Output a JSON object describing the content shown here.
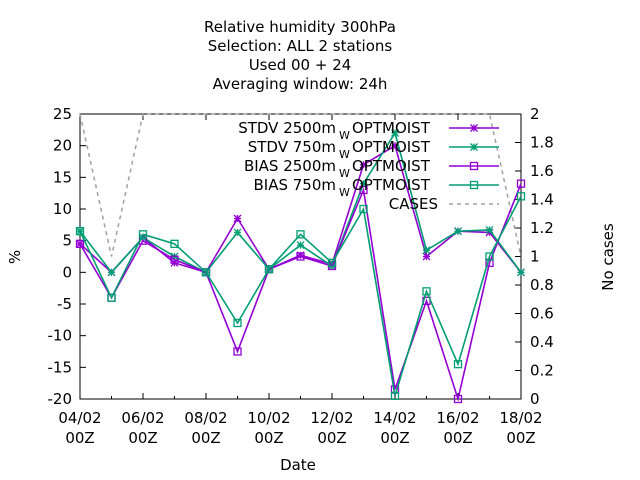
{
  "chart_data": {
    "type": "line",
    "title_lines": [
      "Relative humidity 300hPa",
      "Selection: ALL      2 stations",
      "Used  00 + 24",
      "Averaging window: 24h"
    ],
    "xlabel": "Date",
    "ylabel": "%",
    "y2label": "No cases",
    "ylim": [
      -20,
      25
    ],
    "y2lim": [
      0,
      2
    ],
    "yticks": [
      -20,
      -15,
      -10,
      -5,
      0,
      5,
      10,
      15,
      20,
      25
    ],
    "y2ticks": [
      "0",
      "0.2",
      "0.4",
      "0.6",
      "0.8",
      "1",
      "1.2",
      "1.4",
      "1.6",
      "1.8",
      "2"
    ],
    "x_ticks": [
      {
        "line1": "04/02",
        "line2": "00Z"
      },
      {
        "line1": "06/02",
        "line2": "00Z"
      },
      {
        "line1": "08/02",
        "line2": "00Z"
      },
      {
        "line1": "10/02",
        "line2": "00Z"
      },
      {
        "line1": "12/02",
        "line2": "00Z"
      },
      {
        "line1": "14/02",
        "line2": "00Z"
      },
      {
        "line1": "16/02",
        "line2": "00Z"
      },
      {
        "line1": "18/02",
        "line2": "00Z"
      }
    ],
    "x": [
      "04/02",
      "05/02",
      "06/02",
      "07/02",
      "08/02",
      "09/02",
      "10/02",
      "11/02",
      "12/02",
      "13/02",
      "14/02",
      "15/02",
      "16/02",
      "17/02",
      "18/02"
    ],
    "legend_position": "top-right",
    "series": [
      {
        "name": "STDV 2500m",
        "suffix": "OPTMOIST",
        "subscript": "W",
        "color": "#9400d3",
        "marker": "star",
        "dash": false,
        "axis": "y",
        "values": [
          4.5,
          0,
          5.5,
          1.5,
          0,
          8.5,
          0.5,
          2.7,
          1.3,
          17,
          20,
          2.5,
          6.5,
          6.3,
          0
        ]
      },
      {
        "name": "STDV 750m",
        "suffix": "OPTMOIST",
        "subscript": "W",
        "color": "#009e73",
        "marker": "star",
        "dash": false,
        "axis": "y",
        "values": [
          6.5,
          0,
          5.5,
          2.5,
          0,
          6.3,
          0.5,
          4.3,
          1,
          14,
          22,
          3.5,
          6.5,
          6.7,
          0
        ]
      },
      {
        "name": "BIAS 2500m",
        "suffix": "OPTMOIST",
        "subscript": "W",
        "color": "#9400d3",
        "marker": "square",
        "dash": false,
        "axis": "y",
        "values": [
          4.5,
          -4,
          5,
          2,
          0,
          -12.5,
          0.5,
          2.5,
          1,
          13,
          -18.5,
          -4.5,
          -20,
          1.5,
          14
        ]
      },
      {
        "name": "BIAS 750m",
        "suffix": "OPTMOIST",
        "subscript": "W",
        "color": "#009e73",
        "marker": "square",
        "dash": false,
        "axis": "y",
        "values": [
          6.5,
          -4,
          6,
          4.5,
          0,
          -8,
          0.5,
          6,
          1.5,
          10,
          -19.5,
          -3,
          -14.5,
          2.5,
          12
        ]
      },
      {
        "name": "CASES",
        "suffix": "",
        "subscript": "",
        "color": "#a0a0a0",
        "marker": "none",
        "dash": true,
        "axis": "y2",
        "values": [
          2,
          1,
          2,
          2,
          2,
          2,
          2,
          2,
          2,
          2,
          2,
          2,
          2,
          2,
          1
        ]
      }
    ]
  }
}
